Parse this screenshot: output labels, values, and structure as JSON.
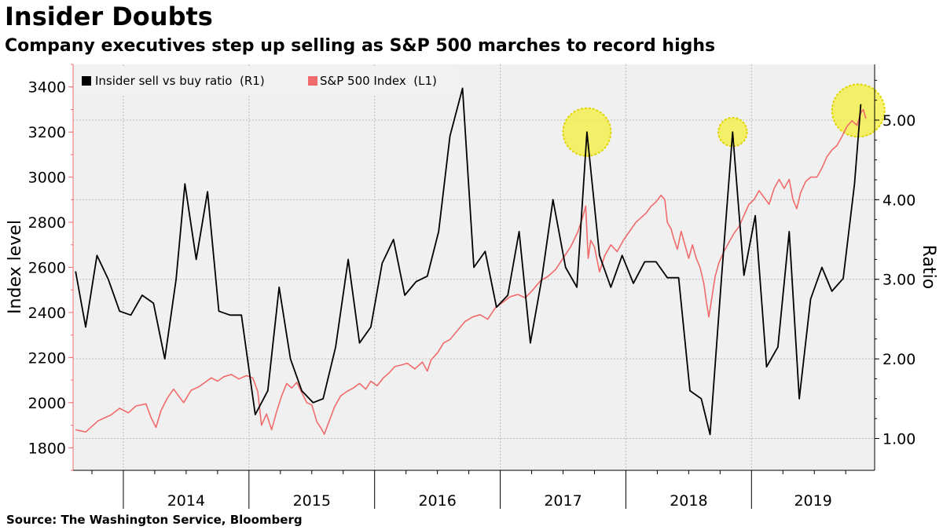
{
  "header": {
    "title": "Insider Doubts",
    "subtitle": "Company executives step up selling as S&P 500 marches to record highs"
  },
  "footer": {
    "source": "Source: The Washington Service, Bloomberg"
  },
  "chart_data": {
    "type": "line",
    "title": "Insider Doubts",
    "subtitle": "Company executives step up selling as S&P 500 marches to record highs",
    "y_left": {
      "label": "Index level",
      "range": [
        1700,
        3500
      ],
      "ticks": [
        1800,
        2000,
        2200,
        2400,
        2600,
        2800,
        3000,
        3200,
        3400
      ]
    },
    "y_right": {
      "label": "Ratio",
      "range": [
        0.6,
        5.7
      ],
      "ticks": [
        "1.00",
        "2.00",
        "3.00",
        "4.00",
        "5.00"
      ]
    },
    "x_axis": {
      "range": [
        2013.6,
        2019.98
      ],
      "year_labels": [
        "2014",
        "2015",
        "2016",
        "2017",
        "2018",
        "2019"
      ]
    },
    "legend": {
      "position": "top-left"
    },
    "grid": true,
    "highlight_color": "#f5ef3c",
    "series": [
      {
        "name": "Insider sell vs buy ratio  (R1)",
        "axis": "right",
        "color": "#000000",
        "points": [
          [
            2013.62,
            3.1
          ],
          [
            2013.7,
            2.4
          ],
          [
            2013.79,
            3.3
          ],
          [
            2013.88,
            3.0
          ],
          [
            2013.97,
            2.6
          ],
          [
            2014.06,
            2.55
          ],
          [
            2014.15,
            2.8
          ],
          [
            2014.24,
            2.7
          ],
          [
            2014.33,
            2.0
          ],
          [
            2014.42,
            3.0
          ],
          [
            2014.49,
            4.2
          ],
          [
            2014.58,
            3.25
          ],
          [
            2014.67,
            4.1
          ],
          [
            2014.76,
            2.6
          ],
          [
            2014.85,
            2.55
          ],
          [
            2014.94,
            2.55
          ],
          [
            2015.05,
            1.3
          ],
          [
            2015.15,
            1.6
          ],
          [
            2015.24,
            2.9
          ],
          [
            2015.33,
            2.0
          ],
          [
            2015.42,
            1.6
          ],
          [
            2015.51,
            1.45
          ],
          [
            2015.59,
            1.5
          ],
          [
            2015.69,
            2.15
          ],
          [
            2015.79,
            3.25
          ],
          [
            2015.88,
            2.2
          ],
          [
            2015.97,
            2.4
          ],
          [
            2016.06,
            3.2
          ],
          [
            2016.15,
            3.5
          ],
          [
            2016.24,
            2.8
          ],
          [
            2016.33,
            2.97
          ],
          [
            2016.42,
            3.04
          ],
          [
            2016.51,
            3.6
          ],
          [
            2016.6,
            4.8
          ],
          [
            2016.7,
            5.4
          ],
          [
            2016.79,
            3.15
          ],
          [
            2016.88,
            3.35
          ],
          [
            2016.97,
            2.65
          ],
          [
            2017.06,
            2.8
          ],
          [
            2017.15,
            3.6
          ],
          [
            2017.24,
            2.2
          ],
          [
            2017.33,
            3.0
          ],
          [
            2017.42,
            4.0
          ],
          [
            2017.52,
            3.15
          ],
          [
            2017.61,
            2.9
          ],
          [
            2017.69,
            4.85
          ],
          [
            2017.79,
            3.3
          ],
          [
            2017.88,
            2.9
          ],
          [
            2017.97,
            3.3
          ],
          [
            2018.06,
            2.95
          ],
          [
            2018.15,
            3.22
          ],
          [
            2018.24,
            3.22
          ],
          [
            2018.33,
            3.02
          ],
          [
            2018.42,
            3.02
          ],
          [
            2018.51,
            1.6
          ],
          [
            2018.6,
            1.5
          ],
          [
            2018.67,
            1.05
          ],
          [
            2018.76,
            3.0
          ],
          [
            2018.85,
            4.85
          ],
          [
            2018.94,
            3.05
          ],
          [
            2019.03,
            3.8
          ],
          [
            2019.12,
            1.9
          ],
          [
            2019.21,
            2.15
          ],
          [
            2019.3,
            3.6
          ],
          [
            2019.38,
            1.5
          ],
          [
            2019.47,
            2.75
          ],
          [
            2019.56,
            3.15
          ],
          [
            2019.64,
            2.85
          ],
          [
            2019.73,
            3.01
          ],
          [
            2019.82,
            4.2
          ],
          [
            2019.87,
            5.2
          ]
        ]
      },
      {
        "name": "S&P 500 Index  (L1)",
        "axis": "left",
        "color": "#f06b6b",
        "points": [
          [
            2013.62,
            1880
          ],
          [
            2013.7,
            1870
          ],
          [
            2013.8,
            1920
          ],
          [
            2013.9,
            1945
          ],
          [
            2013.97,
            1975
          ],
          [
            2014.04,
            1955
          ],
          [
            2014.1,
            1985
          ],
          [
            2014.18,
            1995
          ],
          [
            2014.22,
            1935
          ],
          [
            2014.26,
            1890
          ],
          [
            2014.3,
            1965
          ],
          [
            2014.35,
            2020
          ],
          [
            2014.4,
            2060
          ],
          [
            2014.44,
            2030
          ],
          [
            2014.48,
            2000
          ],
          [
            2014.54,
            2055
          ],
          [
            2014.6,
            2070
          ],
          [
            2014.65,
            2090
          ],
          [
            2014.7,
            2110
          ],
          [
            2014.75,
            2095
          ],
          [
            2014.8,
            2115
          ],
          [
            2014.86,
            2125
          ],
          [
            2014.92,
            2105
          ],
          [
            2014.98,
            2120
          ],
          [
            2015.03,
            2110
          ],
          [
            2015.07,
            2050
          ],
          [
            2015.1,
            1900
          ],
          [
            2015.14,
            1950
          ],
          [
            2015.18,
            1880
          ],
          [
            2015.22,
            1960
          ],
          [
            2015.26,
            2030
          ],
          [
            2015.3,
            2085
          ],
          [
            2015.34,
            2065
          ],
          [
            2015.38,
            2090
          ],
          [
            2015.42,
            2045
          ],
          [
            2015.46,
            2000
          ],
          [
            2015.5,
            1990
          ],
          [
            2015.54,
            1915
          ],
          [
            2015.57,
            1890
          ],
          [
            2015.6,
            1860
          ],
          [
            2015.64,
            1920
          ],
          [
            2015.68,
            1980
          ],
          [
            2015.73,
            2030
          ],
          [
            2015.78,
            2050
          ],
          [
            2015.83,
            2065
          ],
          [
            2015.88,
            2085
          ],
          [
            2015.93,
            2060
          ],
          [
            2015.97,
            2095
          ],
          [
            2016.02,
            2075
          ],
          [
            2016.07,
            2110
          ],
          [
            2016.12,
            2135
          ],
          [
            2016.16,
            2160
          ],
          [
            2016.2,
            2165
          ],
          [
            2016.26,
            2175
          ],
          [
            2016.32,
            2150
          ],
          [
            2016.38,
            2180
          ],
          [
            2016.42,
            2140
          ],
          [
            2016.45,
            2190
          ],
          [
            2016.5,
            2220
          ],
          [
            2016.55,
            2265
          ],
          [
            2016.6,
            2280
          ],
          [
            2016.66,
            2320
          ],
          [
            2016.72,
            2360
          ],
          [
            2016.78,
            2380
          ],
          [
            2016.84,
            2390
          ],
          [
            2016.9,
            2370
          ],
          [
            2016.96,
            2420
          ],
          [
            2017.02,
            2445
          ],
          [
            2017.08,
            2470
          ],
          [
            2017.14,
            2480
          ],
          [
            2017.2,
            2465
          ],
          [
            2017.26,
            2500
          ],
          [
            2017.32,
            2540
          ],
          [
            2017.38,
            2560
          ],
          [
            2017.44,
            2590
          ],
          [
            2017.5,
            2640
          ],
          [
            2017.56,
            2690
          ],
          [
            2017.62,
            2760
          ],
          [
            2017.66,
            2830
          ],
          [
            2017.68,
            2872
          ],
          [
            2017.7,
            2640
          ],
          [
            2017.72,
            2720
          ],
          [
            2017.75,
            2690
          ],
          [
            2017.79,
            2580
          ],
          [
            2017.83,
            2650
          ],
          [
            2017.88,
            2700
          ],
          [
            2017.93,
            2670
          ],
          [
            2017.98,
            2720
          ],
          [
            2018.03,
            2760
          ],
          [
            2018.08,
            2800
          ],
          [
            2018.12,
            2820
          ],
          [
            2018.16,
            2840
          ],
          [
            2018.2,
            2870
          ],
          [
            2018.24,
            2890
          ],
          [
            2018.28,
            2920
          ],
          [
            2018.31,
            2900
          ],
          [
            2018.33,
            2800
          ],
          [
            2018.36,
            2770
          ],
          [
            2018.38,
            2730
          ],
          [
            2018.41,
            2680
          ],
          [
            2018.44,
            2760
          ],
          [
            2018.47,
            2700
          ],
          [
            2018.5,
            2640
          ],
          [
            2018.53,
            2700
          ],
          [
            2018.56,
            2640
          ],
          [
            2018.59,
            2600
          ],
          [
            2018.62,
            2530
          ],
          [
            2018.64,
            2450
          ],
          [
            2018.66,
            2380
          ],
          [
            2018.68,
            2450
          ],
          [
            2018.71,
            2560
          ],
          [
            2018.74,
            2620
          ],
          [
            2018.78,
            2670
          ],
          [
            2018.82,
            2710
          ],
          [
            2018.86,
            2750
          ],
          [
            2018.9,
            2780
          ],
          [
            2018.94,
            2830
          ],
          [
            2018.98,
            2880
          ],
          [
            2019.02,
            2900
          ],
          [
            2019.06,
            2940
          ],
          [
            2019.1,
            2910
          ],
          [
            2019.14,
            2880
          ],
          [
            2019.18,
            2950
          ],
          [
            2019.22,
            2990
          ],
          [
            2019.26,
            2950
          ],
          [
            2019.3,
            2990
          ],
          [
            2019.33,
            2900
          ],
          [
            2019.36,
            2860
          ],
          [
            2019.39,
            2930
          ],
          [
            2019.43,
            2980
          ],
          [
            2019.47,
            3000
          ],
          [
            2019.52,
            3000
          ],
          [
            2019.56,
            3040
          ],
          [
            2019.6,
            3090
          ],
          [
            2019.64,
            3120
          ],
          [
            2019.68,
            3140
          ],
          [
            2019.72,
            3180
          ],
          [
            2019.76,
            3225
          ],
          [
            2019.8,
            3250
          ],
          [
            2019.84,
            3230
          ],
          [
            2019.87,
            3285
          ],
          [
            2019.89,
            3300
          ],
          [
            2019.91,
            3260
          ]
        ]
      }
    ],
    "annotations": [
      {
        "type": "highlight-circle",
        "x": 2017.69,
        "y": 4.85,
        "axis": "right",
        "r_units": 0.1
      },
      {
        "type": "highlight-circle",
        "x": 2018.85,
        "y": 4.85,
        "axis": "right",
        "r_units": 0.06
      },
      {
        "type": "highlight-circle",
        "x": 2019.85,
        "y": 5.12,
        "axis": "right",
        "r_units": 0.11
      }
    ]
  }
}
